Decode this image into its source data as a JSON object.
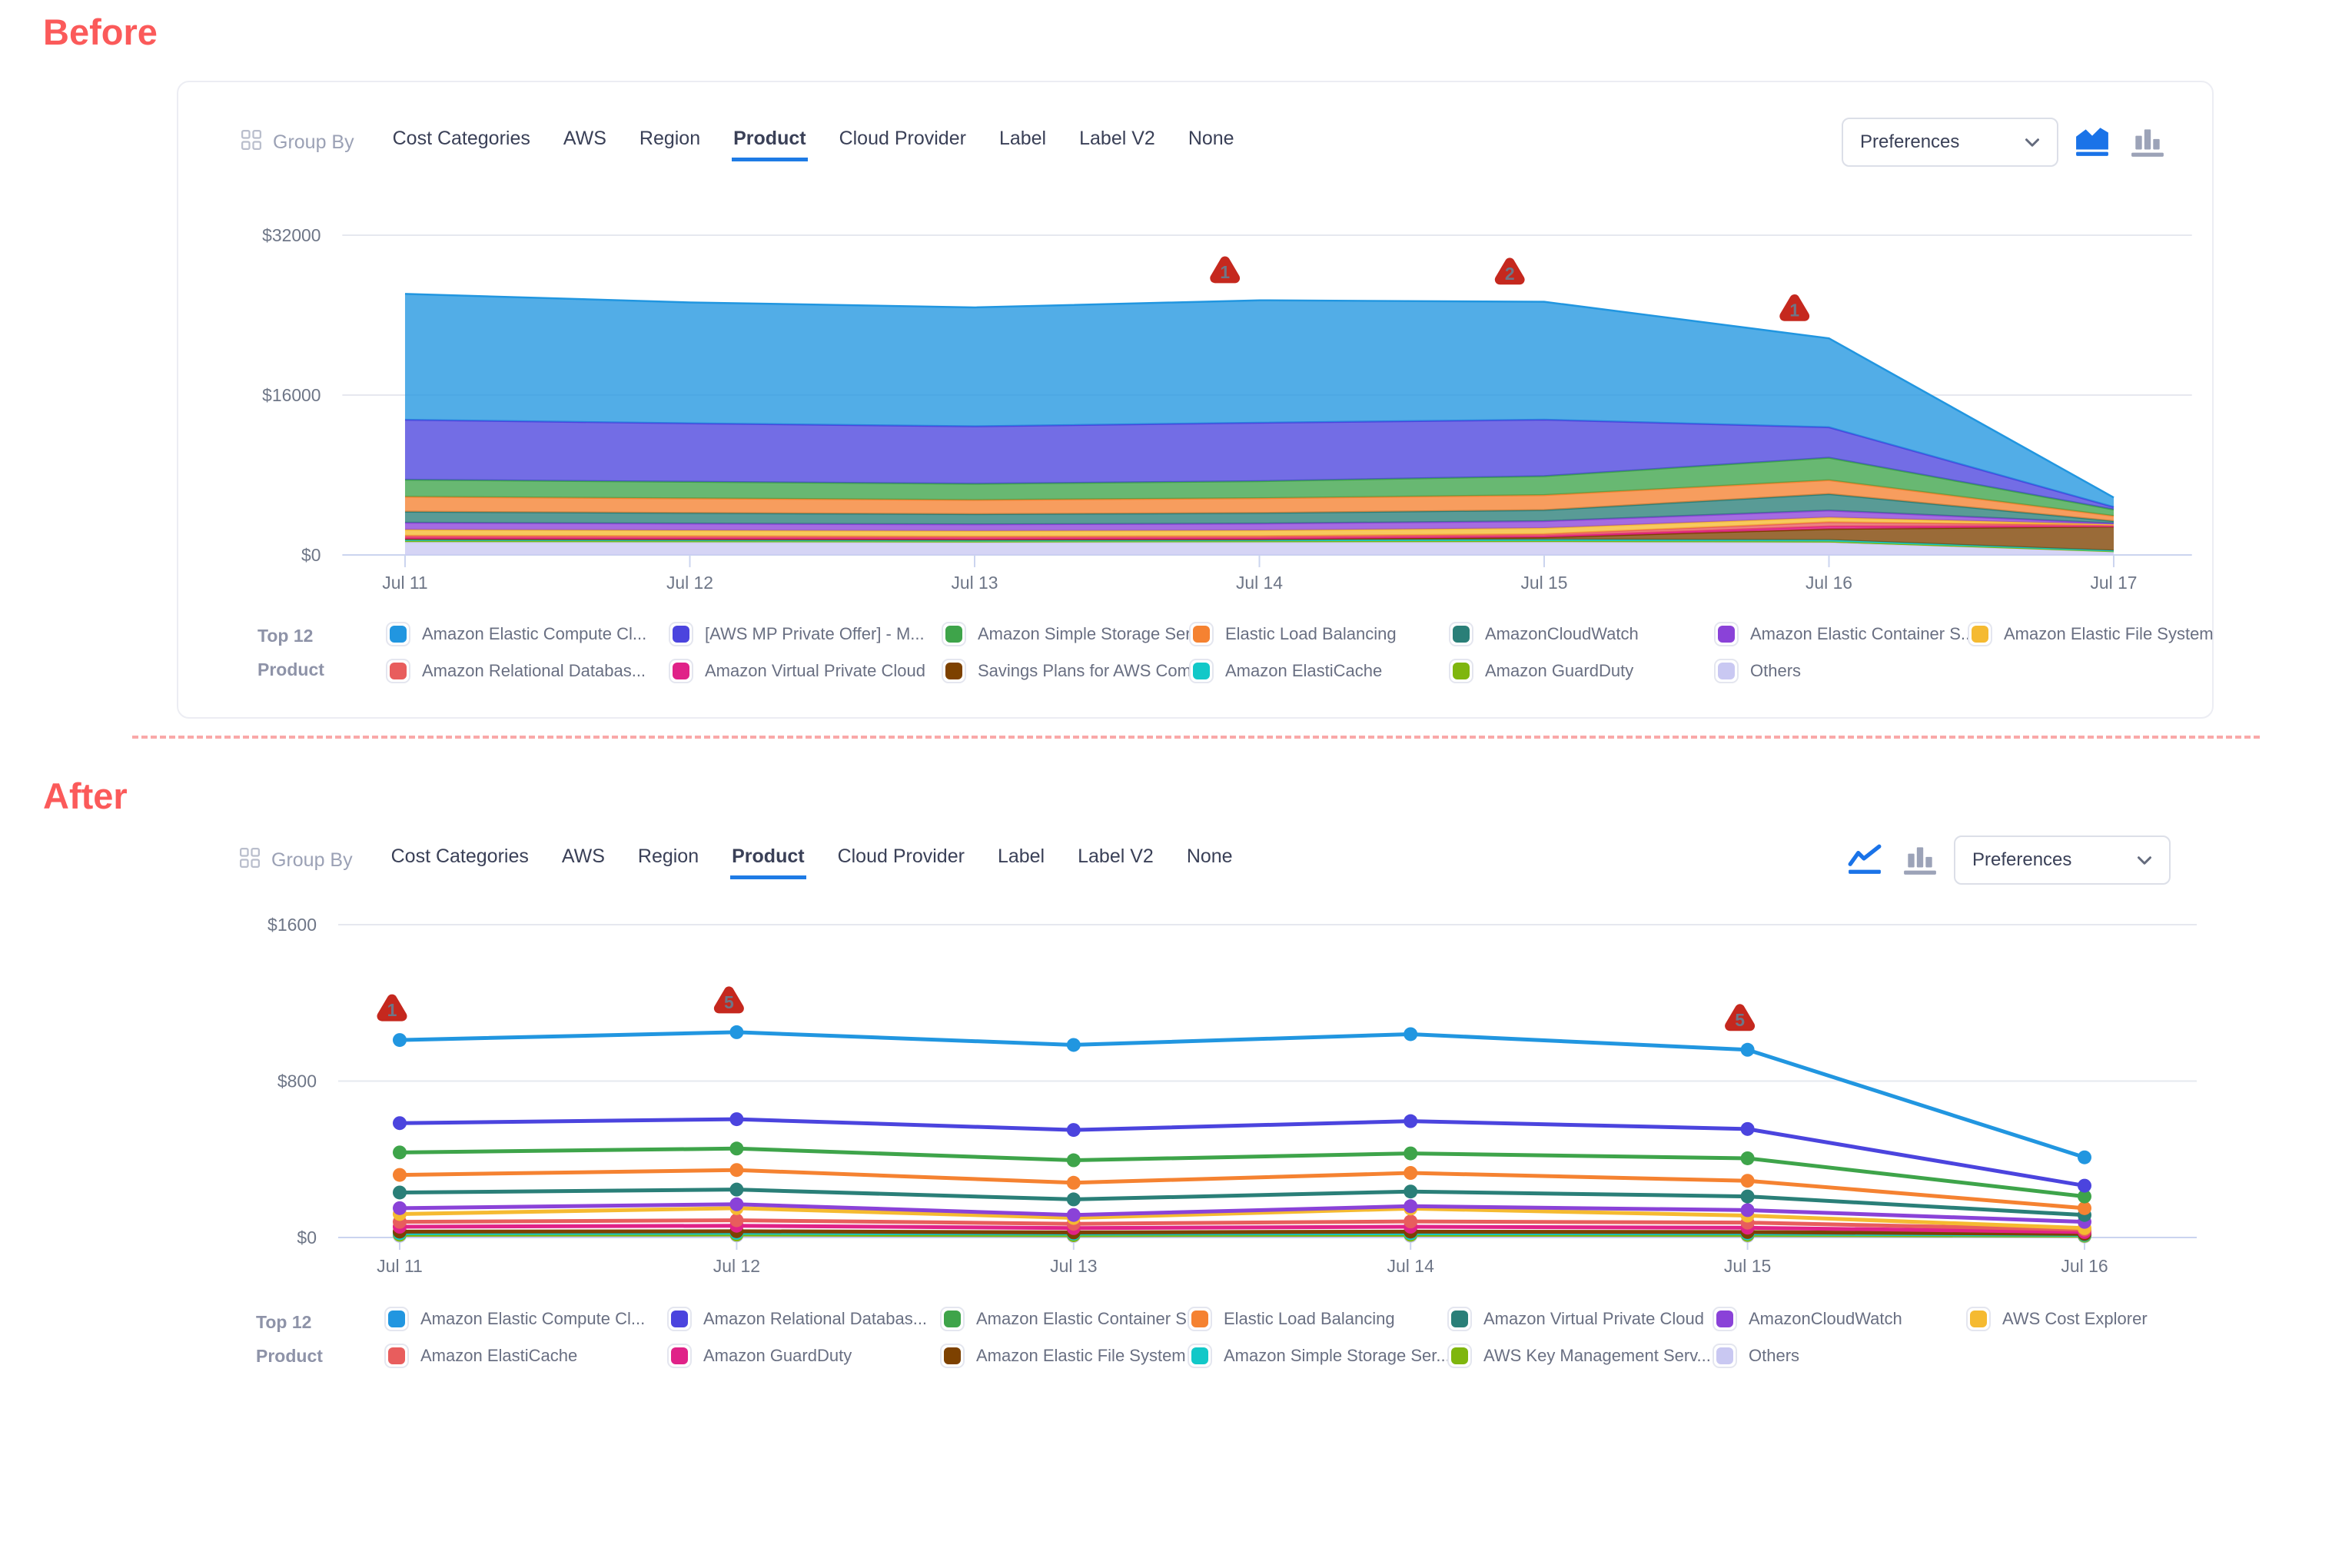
{
  "labels": {
    "before": "Before",
    "after": "After"
  },
  "colors": {
    "accent_blue": "#1E7BE5",
    "badge_red": "#C5281E",
    "section_label_red": "#FB5A5A",
    "icon_inactive_gray": "#9CA3B8"
  },
  "panels": [
    {
      "id": "before",
      "group_by_label": "Group By",
      "tabs": [
        "Cost Categories",
        "AWS",
        "Region",
        "Product",
        "Cloud Provider",
        "Label",
        "Label V2",
        "None"
      ],
      "selected_tab": "Product",
      "preferences_label": "Preferences",
      "chart_type_toggle": {
        "active": "area-chart",
        "inactive": "bar-chart"
      },
      "legend": {
        "title_line1": "Top 12",
        "title_line2": "Product",
        "items": [
          {
            "label": "Amazon Elastic Compute Cl...",
            "color": "#2196E0"
          },
          {
            "label": "[AWS MP Private Offer] - M...",
            "color": "#4B44DE"
          },
          {
            "label": "Amazon Simple Storage Ser...",
            "color": "#3EA44A"
          },
          {
            "label": "Elastic Load Balancing",
            "color": "#F58231"
          },
          {
            "label": "AmazonCloudWatch",
            "color": "#2A7F78"
          },
          {
            "label": "Amazon Elastic Container S...",
            "color": "#8A42D8"
          },
          {
            "label": "Amazon Elastic File System",
            "color": "#F5BA31"
          },
          {
            "label": "Amazon Relational Databas...",
            "color": "#E85D5D"
          },
          {
            "label": "Amazon Virtual Private Cloud",
            "color": "#E02288"
          },
          {
            "label": "Savings Plans for AWS Com...",
            "color": "#7D4100"
          },
          {
            "label": "Amazon ElastiCache",
            "color": "#12C8C8"
          },
          {
            "label": "Amazon GuardDuty",
            "color": "#7FB60E"
          },
          {
            "label": "Others",
            "color": "#C9C8F2"
          }
        ]
      },
      "chart_data": {
        "type": "area",
        "stacked": true,
        "stack_order": "bottom-to-top",
        "x": [
          "Jul 11",
          "Jul 12",
          "Jul 13",
          "Jul 14",
          "Jul 15",
          "Jul 16",
          "Jul 17"
        ],
        "ylim": [
          0,
          32000
        ],
        "y_ticks": [
          {
            "label": "$32000",
            "value": 32000
          },
          {
            "label": "$16000",
            "value": 16000
          },
          {
            "label": "$0",
            "value": 0
          }
        ],
        "grid": "horizontal",
        "legend_position": "bottom",
        "series": [
          {
            "name": "Others",
            "color": "#C9C8F2",
            "values": [
              1300,
              1280,
              1260,
              1280,
              1300,
              1250,
              350
            ]
          },
          {
            "name": "Amazon GuardDuty",
            "color": "#7FB60E",
            "values": [
              100,
              95,
              90,
              95,
              100,
              100,
              30
            ]
          },
          {
            "name": "Amazon ElastiCache",
            "color": "#12C8C8",
            "values": [
              150,
              145,
              140,
              145,
              150,
              150,
              60
            ]
          },
          {
            "name": "Savings Plans for AWS Com...",
            "color": "#7D4100",
            "values": [
              60,
              60,
              60,
              60,
              220,
              1100,
              2400
            ]
          },
          {
            "name": "Amazon Virtual Private Cloud",
            "color": "#E02288",
            "values": [
              120,
              115,
              110,
              115,
              120,
              260,
              60
            ]
          },
          {
            "name": "Amazon Relational Databas...",
            "color": "#E85D5D",
            "values": [
              200,
              190,
              185,
              190,
              200,
              420,
              90
            ]
          },
          {
            "name": "Amazon Elastic File System",
            "color": "#F5BA31",
            "values": [
              600,
              580,
              560,
              580,
              600,
              480,
              70
            ]
          },
          {
            "name": "Amazon Elastic Container S...",
            "color": "#8A42D8",
            "values": [
              700,
              680,
              660,
              680,
              700,
              690,
              110
            ]
          },
          {
            "name": "AmazonCloudWatch",
            "color": "#2A7F78",
            "values": [
              1100,
              1060,
              1020,
              1060,
              1100,
              1650,
              220
            ]
          },
          {
            "name": "Elastic Load Balancing",
            "color": "#F58231",
            "values": [
              1500,
              1460,
              1420,
              1480,
              1500,
              1380,
              520
            ]
          },
          {
            "name": "Amazon Simple Storage Ser...",
            "color": "#3EA44A",
            "values": [
              1700,
              1660,
              1620,
              1700,
              1900,
              2250,
              640
            ]
          },
          {
            "name": "[AWS MP Private Offer] - M...",
            "color": "#4B44DE",
            "values": [
              6000,
              5850,
              5750,
              5850,
              5650,
              3050,
              250
            ]
          },
          {
            "name": "Amazon Elastic Compute Cl...",
            "color": "#2196E0",
            "values": [
              12600,
              12100,
              11900,
              12250,
              11800,
              8900,
              950
            ]
          }
        ],
        "annotations": [
          {
            "x": "Jul 14",
            "label": "1"
          },
          {
            "x": "Jul 15",
            "label": "2"
          },
          {
            "x": "Jul 16",
            "label": "1"
          }
        ]
      }
    },
    {
      "id": "after",
      "group_by_label": "Group By",
      "tabs": [
        "Cost Categories",
        "AWS",
        "Region",
        "Product",
        "Cloud Provider",
        "Label",
        "Label V2",
        "None"
      ],
      "selected_tab": "Product",
      "preferences_label": "Preferences",
      "chart_type_toggle": {
        "active": "line-chart",
        "inactive": "bar-chart"
      },
      "legend": {
        "title_line1": "Top 12",
        "title_line2": "Product",
        "items": [
          {
            "label": "Amazon Elastic Compute Cl...",
            "color": "#2196E0"
          },
          {
            "label": "Amazon Relational Databas...",
            "color": "#4B44DE"
          },
          {
            "label": "Amazon Elastic Container S...",
            "color": "#3EA44A"
          },
          {
            "label": "Elastic Load Balancing",
            "color": "#F58231"
          },
          {
            "label": "Amazon Virtual Private Cloud",
            "color": "#2A7F78"
          },
          {
            "label": "AmazonCloudWatch",
            "color": "#8A42D8"
          },
          {
            "label": "AWS Cost Explorer",
            "color": "#F5BA31"
          },
          {
            "label": "Amazon ElastiCache",
            "color": "#E85D5D"
          },
          {
            "label": "Amazon GuardDuty",
            "color": "#E02288"
          },
          {
            "label": "Amazon Elastic File System",
            "color": "#7D4100"
          },
          {
            "label": "Amazon Simple Storage Ser...",
            "color": "#12C8C8"
          },
          {
            "label": "AWS Key Management Serv...",
            "color": "#7FB60E"
          },
          {
            "label": "Others",
            "color": "#C9C8F2"
          }
        ]
      },
      "chart_data": {
        "type": "line",
        "stacked": false,
        "x": [
          "Jul 11",
          "Jul 12",
          "Jul 13",
          "Jul 14",
          "Jul 15",
          "Jul 16"
        ],
        "ylim": [
          0,
          1600
        ],
        "y_ticks": [
          {
            "label": "$1600",
            "value": 1600
          },
          {
            "label": "$800",
            "value": 800
          },
          {
            "label": "$0",
            "value": 0
          }
        ],
        "grid": "horizontal",
        "legend_position": "bottom",
        "series": [
          {
            "name": "Amazon Elastic Compute Cl...",
            "color": "#2196E0",
            "values": [
              1010,
              1050,
              985,
              1040,
              960,
              410
            ]
          },
          {
            "name": "Amazon Relational Databas...",
            "color": "#4B44DE",
            "values": [
              585,
              605,
              550,
              595,
              555,
              265
            ]
          },
          {
            "name": "Amazon Elastic Container S...",
            "color": "#3EA44A",
            "values": [
              435,
              455,
              395,
              430,
              405,
              210
            ]
          },
          {
            "name": "Elastic Load Balancing",
            "color": "#F58231",
            "values": [
              320,
              345,
              280,
              330,
              290,
              150
            ]
          },
          {
            "name": "Amazon Virtual Private Cloud",
            "color": "#2A7F78",
            "values": [
              230,
              245,
              195,
              235,
              210,
              115
            ]
          },
          {
            "name": "AmazonCloudWatch",
            "color": "#8A42D8",
            "values": [
              150,
              170,
              115,
              160,
              140,
              80
            ]
          },
          {
            "name": "AWS Cost Explorer",
            "color": "#F5BA31",
            "values": [
              120,
              150,
              100,
              148,
              112,
              48
            ]
          },
          {
            "name": "Amazon ElastiCache",
            "color": "#E85D5D",
            "values": [
              80,
              88,
              70,
              82,
              76,
              40
            ]
          },
          {
            "name": "Amazon GuardDuty",
            "color": "#E02288",
            "values": [
              55,
              60,
              48,
              55,
              50,
              28
            ]
          },
          {
            "name": "Amazon Elastic File System",
            "color": "#7D4100",
            "values": [
              30,
              32,
              26,
              30,
              28,
              18
            ]
          },
          {
            "name": "Amazon Simple Storage Ser...",
            "color": "#12C8C8",
            "values": [
              22,
              24,
              20,
              22,
              21,
              14
            ]
          },
          {
            "name": "AWS Key Management Serv...",
            "color": "#7FB60E",
            "values": [
              14,
              15,
              12,
              14,
              13,
              9
            ]
          },
          {
            "name": "Others",
            "color": "#C9C8F2",
            "values": [
              8,
              10,
              7,
              8,
              8,
              5
            ]
          }
        ],
        "annotations": [
          {
            "x": "Jul 11",
            "label": "1"
          },
          {
            "x": "Jul 12",
            "label": "5"
          },
          {
            "x": "Jul 15",
            "label": "5"
          }
        ]
      }
    }
  ]
}
